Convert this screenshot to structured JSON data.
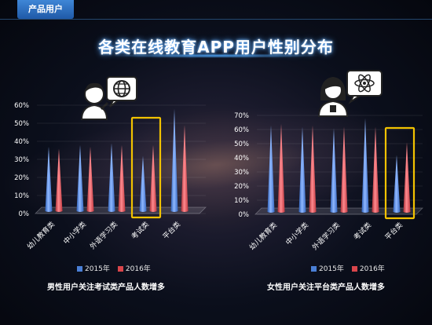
{
  "header": {
    "tag": "产品用户",
    "title": "各类在线教育APP用户性别分布"
  },
  "colors": {
    "s2015": "#4a7fd6",
    "s2016": "#d9454b",
    "highlight": "#f2c200",
    "accent": "#3f86d6"
  },
  "icons": {
    "left": "male-user-globe-icon",
    "right": "female-user-atom-icon"
  },
  "chart_data": [
    {
      "type": "bar",
      "shape": "cone",
      "categories": [
        "幼儿教育类",
        "中小学类",
        "外语学习类",
        "考试类",
        "平台类"
      ],
      "series": [
        {
          "name": "2015年",
          "values": [
            37,
            38,
            39,
            32,
            58
          ]
        },
        {
          "name": "2016年",
          "values": [
            36,
            37,
            38,
            38,
            49
          ]
        }
      ],
      "ylim": [
        0,
        60
      ],
      "yticks": [
        "0%",
        "10%",
        "20%",
        "30%",
        "40%",
        "50%",
        "60%"
      ],
      "highlight": "考试类",
      "legend": [
        "2015年",
        "2016年"
      ],
      "caption": "男性用户关注考试类产品人数增多"
    },
    {
      "type": "bar",
      "shape": "cone",
      "categories": [
        "幼儿教育类",
        "中小学类",
        "外语学习类",
        "考试类",
        "平台类"
      ],
      "series": [
        {
          "name": "2015年",
          "values": [
            63,
            62,
            61,
            68,
            42
          ]
        },
        {
          "name": "2016年",
          "values": [
            64,
            63,
            62,
            62,
            51
          ]
        }
      ],
      "ylim": [
        0,
        70
      ],
      "yticks": [
        "0%",
        "10%",
        "20%",
        "30%",
        "40%",
        "50%",
        "60%",
        "70%"
      ],
      "highlight": "平台类",
      "legend": [
        "2015年",
        "2016年"
      ],
      "caption": "女性用户关注平台类产品人数增多"
    }
  ]
}
